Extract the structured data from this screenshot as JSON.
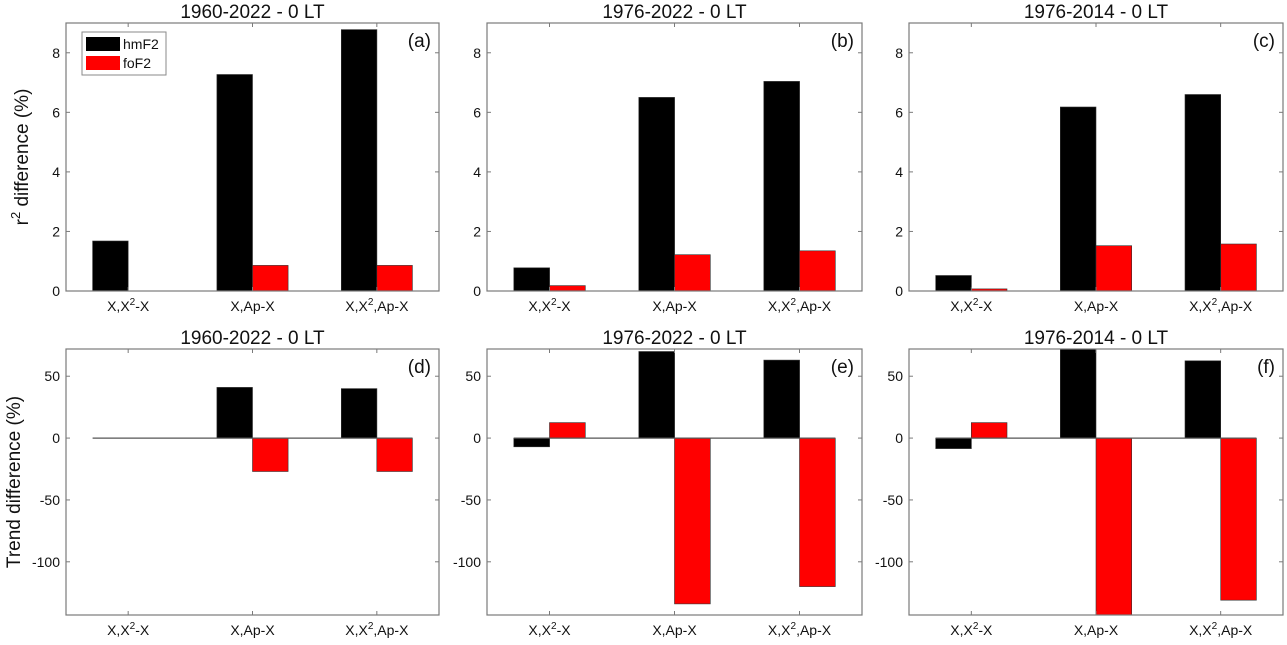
{
  "figure": {
    "legend": {
      "entries": [
        {
          "name": "hmF2",
          "color": "#000000"
        },
        {
          "name": "foF2",
          "color": "#ff0000"
        }
      ],
      "location": "top-left of panel (a)"
    },
    "row_ylabels": [
      {
        "main": "r",
        "sup": "2",
        "rest": " difference (%)"
      },
      {
        "main": "Trend difference (%)",
        "sup": "",
        "rest": ""
      }
    ]
  },
  "chart_data": [
    {
      "type": "bar",
      "panel": "(a)",
      "title": "1960-2022 - 0 LT",
      "categories": [
        "X,X²-X",
        "X,Ap-X",
        "X,X²,Ap-X"
      ],
      "category_parts": [
        [
          "X,X",
          "2",
          "-X"
        ],
        [
          "X,Ap-X",
          "",
          ""
        ],
        [
          "X,X",
          "2",
          ",Ap-X"
        ]
      ],
      "series": [
        {
          "name": "hmF2",
          "values": [
            1.68,
            7.27,
            8.78
          ]
        },
        {
          "name": "foF2",
          "values": [
            0.0,
            0.86,
            0.86
          ]
        }
      ],
      "ylim": [
        0,
        9
      ],
      "yticks": [
        0,
        2,
        4,
        6,
        8
      ],
      "ylabel": "r² difference (%)",
      "grid": false,
      "legend": true
    },
    {
      "type": "bar",
      "panel": "(b)",
      "title": "1976-2022 - 0 LT",
      "categories": [
        "X,X²-X",
        "X,Ap-X",
        "X,X²,Ap-X"
      ],
      "category_parts": [
        [
          "X,X",
          "2",
          "-X"
        ],
        [
          "X,Ap-X",
          "",
          ""
        ],
        [
          "X,X",
          "2",
          ",Ap-X"
        ]
      ],
      "series": [
        {
          "name": "hmF2",
          "values": [
            0.78,
            6.5,
            7.04
          ]
        },
        {
          "name": "foF2",
          "values": [
            0.18,
            1.22,
            1.35
          ]
        }
      ],
      "ylim": [
        0,
        9
      ],
      "yticks": [
        0,
        2,
        4,
        6,
        8
      ],
      "ylabel": "",
      "grid": false,
      "legend": false
    },
    {
      "type": "bar",
      "panel": "(c)",
      "title": "1976-2014 - 0 LT",
      "categories": [
        "X,X²-X",
        "X,Ap-X",
        "X,X²,Ap-X"
      ],
      "category_parts": [
        [
          "X,X",
          "2",
          "-X"
        ],
        [
          "X,Ap-X",
          "",
          ""
        ],
        [
          "X,X",
          "2",
          ",Ap-X"
        ]
      ],
      "series": [
        {
          "name": "hmF2",
          "values": [
            0.52,
            6.18,
            6.6
          ]
        },
        {
          "name": "foF2",
          "values": [
            0.07,
            1.52,
            1.58
          ]
        }
      ],
      "ylim": [
        0,
        9
      ],
      "yticks": [
        0,
        2,
        4,
        6,
        8
      ],
      "ylabel": "",
      "grid": false,
      "legend": false
    },
    {
      "type": "bar",
      "panel": "(d)",
      "title": "1960-2022 - 0 LT",
      "categories": [
        "X,X²-X",
        "X,Ap-X",
        "X,X²,Ap-X"
      ],
      "category_parts": [
        [
          "X,X",
          "2",
          "-X"
        ],
        [
          "X,Ap-X",
          "",
          ""
        ],
        [
          "X,X",
          "2",
          ",Ap-X"
        ]
      ],
      "series": [
        {
          "name": "hmF2",
          "values": [
            0,
            41,
            40
          ]
        },
        {
          "name": "foF2",
          "values": [
            0,
            -27,
            -27
          ]
        }
      ],
      "ylim": [
        -143,
        72
      ],
      "yticks": [
        -100,
        -50,
        0,
        50
      ],
      "ylabel": "Trend difference (%)",
      "grid": false,
      "legend": false
    },
    {
      "type": "bar",
      "panel": "(e)",
      "title": "1976-2022 - 0 LT",
      "categories": [
        "X,X²-X",
        "X,Ap-X",
        "X,X²,Ap-X"
      ],
      "category_parts": [
        [
          "X,X",
          "2",
          "-X"
        ],
        [
          "X,Ap-X",
          "",
          ""
        ],
        [
          "X,X",
          "2",
          ",Ap-X"
        ]
      ],
      "series": [
        {
          "name": "hmF2",
          "values": [
            -7,
            70,
            63
          ]
        },
        {
          "name": "foF2",
          "values": [
            12.5,
            -134,
            -120
          ]
        }
      ],
      "ylim": [
        -143,
        72
      ],
      "yticks": [
        -100,
        -50,
        0,
        50
      ],
      "ylabel": "",
      "grid": false,
      "legend": false
    },
    {
      "type": "bar",
      "panel": "(f)",
      "title": "1976-2014 - 0 LT",
      "categories": [
        "X,X²-X",
        "X,Ap-X",
        "X,X²,Ap-X"
      ],
      "category_parts": [
        [
          "X,X",
          "2",
          "-X"
        ],
        [
          "X,Ap-X",
          "",
          ""
        ],
        [
          "X,X",
          "2",
          ",Ap-X"
        ]
      ],
      "series": [
        {
          "name": "hmF2",
          "values": [
            -8.5,
            72,
            62.5
          ]
        },
        {
          "name": "foF2",
          "values": [
            12.5,
            -143,
            -131
          ]
        }
      ],
      "ylim": [
        -143,
        72
      ],
      "yticks": [
        -100,
        -50,
        0,
        50
      ],
      "ylabel": "",
      "grid": false,
      "legend": false
    }
  ]
}
